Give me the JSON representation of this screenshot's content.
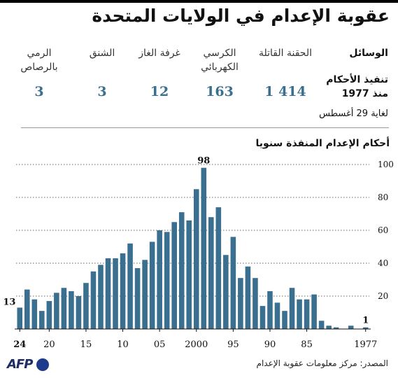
{
  "title": "عقوبة الإعدام في الولايات المتحدة",
  "methods_label": "الوسائل",
  "executions_label": "تنفيذ الأحكام منذ 1977",
  "as_of": "لغاية 29 أغسطس",
  "methods": [
    {
      "name": "الحقنة القاتلة",
      "count": "1 414"
    },
    {
      "name": "الكرسي الكهربائي",
      "count": "163"
    },
    {
      "name": "غرفة الغاز",
      "count": "12"
    },
    {
      "name": "الشنق",
      "count": "3"
    },
    {
      "name": "الرمي بالرصاص",
      "count": "3"
    }
  ],
  "source": "المصدر: مركز معلومات عقوبة الإعدام",
  "logo": "AFP",
  "colors": {
    "bar": "#3a6f8f",
    "accent": "#3a6f8f",
    "grid": "#666666"
  },
  "chart_data": {
    "type": "bar",
    "title": "أحكام الإعدام المنفذة سنويا",
    "x": [
      1977,
      1978,
      1979,
      1980,
      1981,
      1982,
      1983,
      1984,
      1985,
      1986,
      1987,
      1988,
      1989,
      1990,
      1991,
      1992,
      1993,
      1994,
      1995,
      1996,
      1997,
      1998,
      1999,
      2000,
      2001,
      2002,
      2003,
      2004,
      2005,
      2006,
      2007,
      2008,
      2009,
      2010,
      2011,
      2012,
      2013,
      2014,
      2015,
      2016,
      2017,
      2018,
      2019,
      2020,
      2021,
      2022,
      2023,
      2024
    ],
    "values": [
      1,
      0,
      2,
      0,
      1,
      2,
      5,
      21,
      18,
      18,
      25,
      11,
      16,
      23,
      14,
      31,
      38,
      31,
      56,
      45,
      74,
      68,
      98,
      85,
      66,
      71,
      65,
      59,
      60,
      53,
      42,
      37,
      52,
      46,
      43,
      43,
      39,
      35,
      28,
      20,
      23,
      25,
      22,
      17,
      11,
      18,
      24,
      13
    ],
    "x_tick_labels": [
      "1977",
      "85",
      "90",
      "95",
      "2000",
      "05",
      "10",
      "15",
      "20",
      "24"
    ],
    "y_ticks": [
      20,
      40,
      60,
      80,
      100
    ],
    "ylim": [
      0,
      100
    ],
    "annotations": [
      {
        "year": 2024,
        "label": "13"
      },
      {
        "year": 1999,
        "label": "98"
      },
      {
        "year": 1977,
        "label": "1"
      }
    ],
    "grid": true
  }
}
